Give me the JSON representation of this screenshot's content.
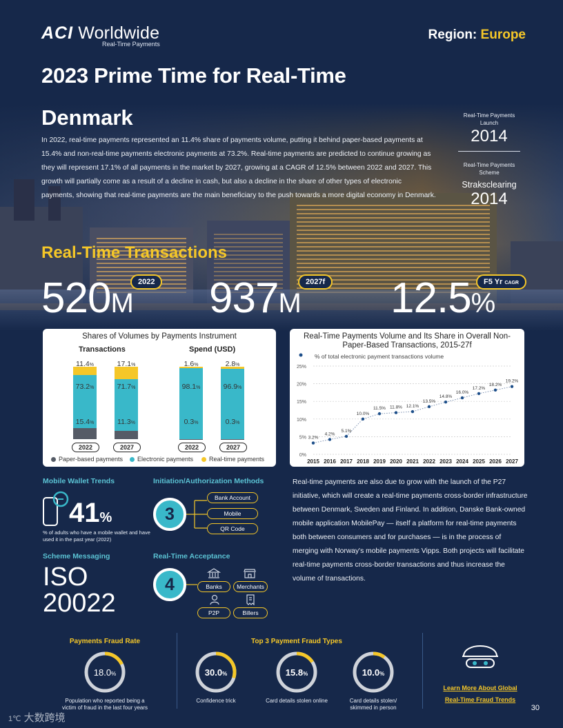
{
  "header": {
    "logo_brand": "ACI",
    "logo_word": "Worldwide",
    "logo_sub": "Real-Time Payments",
    "region_label": "Region:",
    "region_value": "Europe"
  },
  "title": "2023 Prime Time for Real-Time",
  "country": "Denmark",
  "intro": "In 2022, real-time payments represented an 11.4% share of payments volume, putting it behind paper-based payments at 15.4% and non-real-time payments electronic payments at 73.2%. Real-time payments are predicted to continue growing as they will represent 17.1% of all payments in the market by 2027, growing at a CAGR of 12.5% between 2022 and 2027. This growth will partially come as a result of a decline in cash, but also a decline in the share of other types of electronic payments, showing that real-time payments are the main beneficiary to the push towards a more digital economy in Denmark.",
  "sidebar": {
    "launch_label": "Real-Time Payments Launch",
    "launch_year": "2014",
    "scheme_label": "Real-Time Payments Scheme",
    "scheme_name": "Straksclearing",
    "scheme_year": "2014"
  },
  "rt_transactions": {
    "heading": "Real-Time Transactions",
    "stat1": {
      "value": "520",
      "unit": "M",
      "tag": "2022"
    },
    "stat2": {
      "value": "937",
      "unit": "M",
      "tag": "2027f"
    },
    "stat3": {
      "value": "12.5",
      "unit": "%",
      "tag": "F5 Yr",
      "tag_small": "CAGR"
    }
  },
  "chart_data": [
    {
      "type": "bar",
      "stacked": true,
      "title": "Shares of Volumes by Payments Instrument",
      "groups": [
        {
          "name": "Transactions",
          "categories": [
            "2022",
            "2027"
          ],
          "series": [
            {
              "name": "Real-time payments",
              "values": [
                11.4,
                17.1
              ]
            },
            {
              "name": "Electronic payments",
              "values": [
                73.2,
                71.7
              ]
            },
            {
              "name": "Paper-based payments",
              "values": [
                15.4,
                11.3
              ]
            }
          ]
        },
        {
          "name": "Spend (USD)",
          "categories": [
            "2022",
            "2027"
          ],
          "series": [
            {
              "name": "Real-time payments",
              "values": [
                1.6,
                2.8
              ]
            },
            {
              "name": "Electronic payments",
              "values": [
                98.1,
                96.9
              ]
            },
            {
              "name": "Paper-based payments",
              "values": [
                0.3,
                0.3
              ]
            }
          ]
        }
      ],
      "legend": [
        "Paper-based payments",
        "Electronic payments",
        "Real-time payments"
      ],
      "colors": {
        "Real-time payments": "#f5c728",
        "Electronic payments": "#39b8c9",
        "Paper-based payments": "#555b66"
      }
    },
    {
      "type": "line",
      "title": "Real-Time Payments Volume and Its Share in Overall Non-Paper-Based Transactions, 2015-27f",
      "series_label": "% of total electronic payment transactions volume",
      "x": [
        "2015",
        "2016",
        "2017",
        "2018",
        "2019",
        "2020",
        "2021",
        "2022",
        "2023",
        "2024",
        "2025",
        "2026",
        "2027"
      ],
      "values": [
        3.2,
        4.2,
        5.1,
        10.0,
        11.5,
        11.8,
        12.1,
        13.5,
        14.8,
        16.0,
        17.2,
        18.2,
        19.2
      ],
      "labels": [
        "3.2%",
        "4.2%",
        "5.1%",
        "10.0%",
        "11.5%",
        "11.8%",
        "12.1%",
        "13.5%",
        "14.8%",
        "16.0%",
        "17.2%",
        "18.2%",
        "19.2%"
      ],
      "yticks": [
        "0%",
        "5%",
        "10%",
        "15%",
        "20%",
        "25%"
      ],
      "ylim": [
        0,
        25
      ],
      "color": "#1d4f8a"
    }
  ],
  "bar_labels": {
    "t22": {
      "rt": "11.4",
      "el": "73.2",
      "pp": "15.4"
    },
    "t27": {
      "rt": "17.1",
      "el": "71.7",
      "pp": "11.3"
    },
    "s22": {
      "rt": "1.6",
      "el": "98.1",
      "pp": "0.3"
    },
    "s27": {
      "rt": "2.8",
      "el": "96.9",
      "pp": "0.3"
    },
    "pct": "%"
  },
  "mobile_wallet": {
    "heading": "Mobile Wallet Trends",
    "value": "41",
    "unit": "%",
    "caption": "% of adults who have a mobile wallet and have used it in the past year (2022)"
  },
  "init_methods": {
    "heading": "Initiation/Authorization Methods",
    "count": "3",
    "items": [
      "Bank Account",
      "Mobile",
      "QR Code"
    ]
  },
  "scheme_messaging": {
    "heading": "Scheme Messaging",
    "line1": "ISO",
    "line2": "20022"
  },
  "acceptance": {
    "heading": "Real-Time Acceptance",
    "count": "4",
    "items": [
      "Banks",
      "Merchants",
      "P2P",
      "Billers"
    ]
  },
  "body_text": "Real-time payments are also due to grow with the launch of the P27 initiative, which will create a real-time payments cross-border infrastructure between Denmark, Sweden and Finland. In addition, Danske Bank-owned mobile application MobilePay — itself a platform for real-time payments both between consumers and for purchases — is in the process of merging with Norway's mobile payments Vipps. Both projects will facilitate real-time payments cross-border transactions and thus increase the volume of transactions.",
  "fraud": {
    "rate_heading": "Payments Fraud Rate",
    "rate_value": "18.0",
    "rate_pct": 18.0,
    "rate_caption": "Population who reported being a victim of fraud in the last four years",
    "types_heading": "Top 3 Payment Fraud Types",
    "types": [
      {
        "value": "30.0",
        "pct": 30.0,
        "caption": "Confidence trick"
      },
      {
        "value": "15.8",
        "pct": 15.8,
        "caption": "Card details stolen online"
      },
      {
        "value": "10.0",
        "pct": 10.0,
        "caption": "Card details stolen/ skimmed in person"
      }
    ],
    "pct_sign": "%",
    "link_line1": "Learn More About Global",
    "link_line2": "Real-Time Fraud Trends"
  },
  "footer": {
    "page_number": "30",
    "watermark": "大数跨境"
  }
}
